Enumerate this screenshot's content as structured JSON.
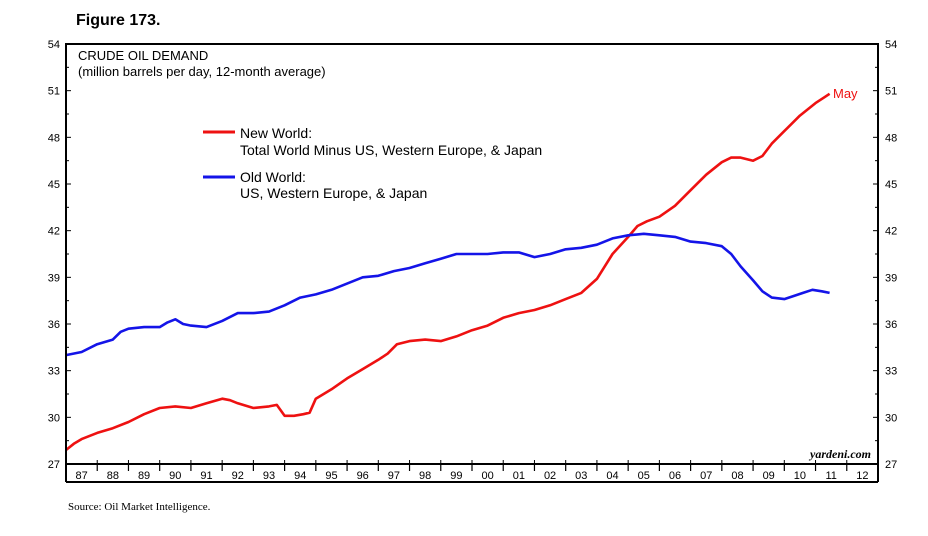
{
  "figure_label": "Figure 173.",
  "source": "Source: Oil Market Intelligence.",
  "chart_data": {
    "type": "line",
    "title": "CRUDE OIL DEMAND",
    "subtitle": "(million barrels per day, 12-month average)",
    "watermark": "yardeni.com",
    "end_annotation": "May",
    "ylim": [
      27,
      54
    ],
    "y_ticks": [
      "27",
      "30",
      "33",
      "36",
      "39",
      "42",
      "45",
      "48",
      "51",
      "54"
    ],
    "x_range": [
      1987,
      2013
    ],
    "x_tick_labels": [
      "87",
      "88",
      "89",
      "90",
      "91",
      "92",
      "93",
      "94",
      "95",
      "96",
      "97",
      "98",
      "99",
      "00",
      "01",
      "02",
      "03",
      "04",
      "05",
      "06",
      "07",
      "08",
      "09",
      "10",
      "11",
      "12"
    ],
    "legend_position": "upper-left",
    "series": [
      {
        "name": "New World",
        "label_line1": "New World:",
        "label_line2": "Total World Minus US, Western Europe, & Japan",
        "color": "#ee1111",
        "points": [
          [
            1987.0,
            27.9
          ],
          [
            1987.25,
            28.3
          ],
          [
            1987.5,
            28.6
          ],
          [
            1988.0,
            29.0
          ],
          [
            1988.5,
            29.3
          ],
          [
            1989.0,
            29.7
          ],
          [
            1989.5,
            30.2
          ],
          [
            1990.0,
            30.6
          ],
          [
            1990.5,
            30.7
          ],
          [
            1991.0,
            30.6
          ],
          [
            1991.5,
            30.9
          ],
          [
            1992.0,
            31.2
          ],
          [
            1992.25,
            31.1
          ],
          [
            1992.5,
            30.9
          ],
          [
            1993.0,
            30.6
          ],
          [
            1993.5,
            30.7
          ],
          [
            1993.75,
            30.8
          ],
          [
            1994.0,
            30.1
          ],
          [
            1994.3,
            30.1
          ],
          [
            1994.6,
            30.2
          ],
          [
            1994.8,
            30.3
          ],
          [
            1995.0,
            31.2
          ],
          [
            1995.5,
            31.8
          ],
          [
            1996.0,
            32.5
          ],
          [
            1996.5,
            33.1
          ],
          [
            1997.0,
            33.7
          ],
          [
            1997.3,
            34.1
          ],
          [
            1997.6,
            34.7
          ],
          [
            1998.0,
            34.9
          ],
          [
            1998.5,
            35.0
          ],
          [
            1999.0,
            34.9
          ],
          [
            1999.5,
            35.2
          ],
          [
            2000.0,
            35.6
          ],
          [
            2000.5,
            35.9
          ],
          [
            2001.0,
            36.4
          ],
          [
            2001.5,
            36.7
          ],
          [
            2002.0,
            36.9
          ],
          [
            2002.5,
            37.2
          ],
          [
            2003.0,
            37.6
          ],
          [
            2003.5,
            38.0
          ],
          [
            2004.0,
            38.9
          ],
          [
            2004.5,
            40.5
          ],
          [
            2005.0,
            41.6
          ],
          [
            2005.3,
            42.3
          ],
          [
            2005.6,
            42.6
          ],
          [
            2006.0,
            42.9
          ],
          [
            2006.5,
            43.6
          ],
          [
            2007.0,
            44.6
          ],
          [
            2007.5,
            45.6
          ],
          [
            2008.0,
            46.4
          ],
          [
            2008.3,
            46.7
          ],
          [
            2008.6,
            46.7
          ],
          [
            2009.0,
            46.5
          ],
          [
            2009.3,
            46.8
          ],
          [
            2009.6,
            47.6
          ],
          [
            2010.0,
            48.4
          ],
          [
            2010.5,
            49.4
          ],
          [
            2011.0,
            50.2
          ],
          [
            2011.3,
            50.6
          ],
          [
            2011.45,
            50.8
          ]
        ]
      },
      {
        "name": "Old World",
        "label_line1": "Old World:",
        "label_line2": "US, Western Europe, & Japan",
        "color": "#1414e8",
        "points": [
          [
            1987.0,
            34.0
          ],
          [
            1987.5,
            34.2
          ],
          [
            1988.0,
            34.7
          ],
          [
            1988.5,
            35.0
          ],
          [
            1988.75,
            35.5
          ],
          [
            1989.0,
            35.7
          ],
          [
            1989.5,
            35.8
          ],
          [
            1990.0,
            35.8
          ],
          [
            1990.25,
            36.1
          ],
          [
            1990.5,
            36.3
          ],
          [
            1990.75,
            36.0
          ],
          [
            1991.0,
            35.9
          ],
          [
            1991.5,
            35.8
          ],
          [
            1992.0,
            36.2
          ],
          [
            1992.5,
            36.7
          ],
          [
            1993.0,
            36.7
          ],
          [
            1993.5,
            36.8
          ],
          [
            1994.0,
            37.2
          ],
          [
            1994.5,
            37.7
          ],
          [
            1995.0,
            37.9
          ],
          [
            1995.5,
            38.2
          ],
          [
            1996.0,
            38.6
          ],
          [
            1996.5,
            39.0
          ],
          [
            1997.0,
            39.1
          ],
          [
            1997.5,
            39.4
          ],
          [
            1998.0,
            39.6
          ],
          [
            1998.5,
            39.9
          ],
          [
            1999.0,
            40.2
          ],
          [
            1999.5,
            40.5
          ],
          [
            2000.0,
            40.5
          ],
          [
            2000.5,
            40.5
          ],
          [
            2001.0,
            40.6
          ],
          [
            2001.5,
            40.6
          ],
          [
            2002.0,
            40.3
          ],
          [
            2002.5,
            40.5
          ],
          [
            2003.0,
            40.8
          ],
          [
            2003.5,
            40.9
          ],
          [
            2004.0,
            41.1
          ],
          [
            2004.5,
            41.5
          ],
          [
            2005.0,
            41.7
          ],
          [
            2005.5,
            41.8
          ],
          [
            2006.0,
            41.7
          ],
          [
            2006.5,
            41.6
          ],
          [
            2007.0,
            41.3
          ],
          [
            2007.5,
            41.2
          ],
          [
            2008.0,
            41.0
          ],
          [
            2008.3,
            40.5
          ],
          [
            2008.6,
            39.7
          ],
          [
            2009.0,
            38.8
          ],
          [
            2009.3,
            38.1
          ],
          [
            2009.6,
            37.7
          ],
          [
            2010.0,
            37.6
          ],
          [
            2010.3,
            37.8
          ],
          [
            2010.6,
            38.0
          ],
          [
            2010.9,
            38.2
          ],
          [
            2011.2,
            38.1
          ],
          [
            2011.45,
            38.0
          ]
        ]
      }
    ]
  }
}
